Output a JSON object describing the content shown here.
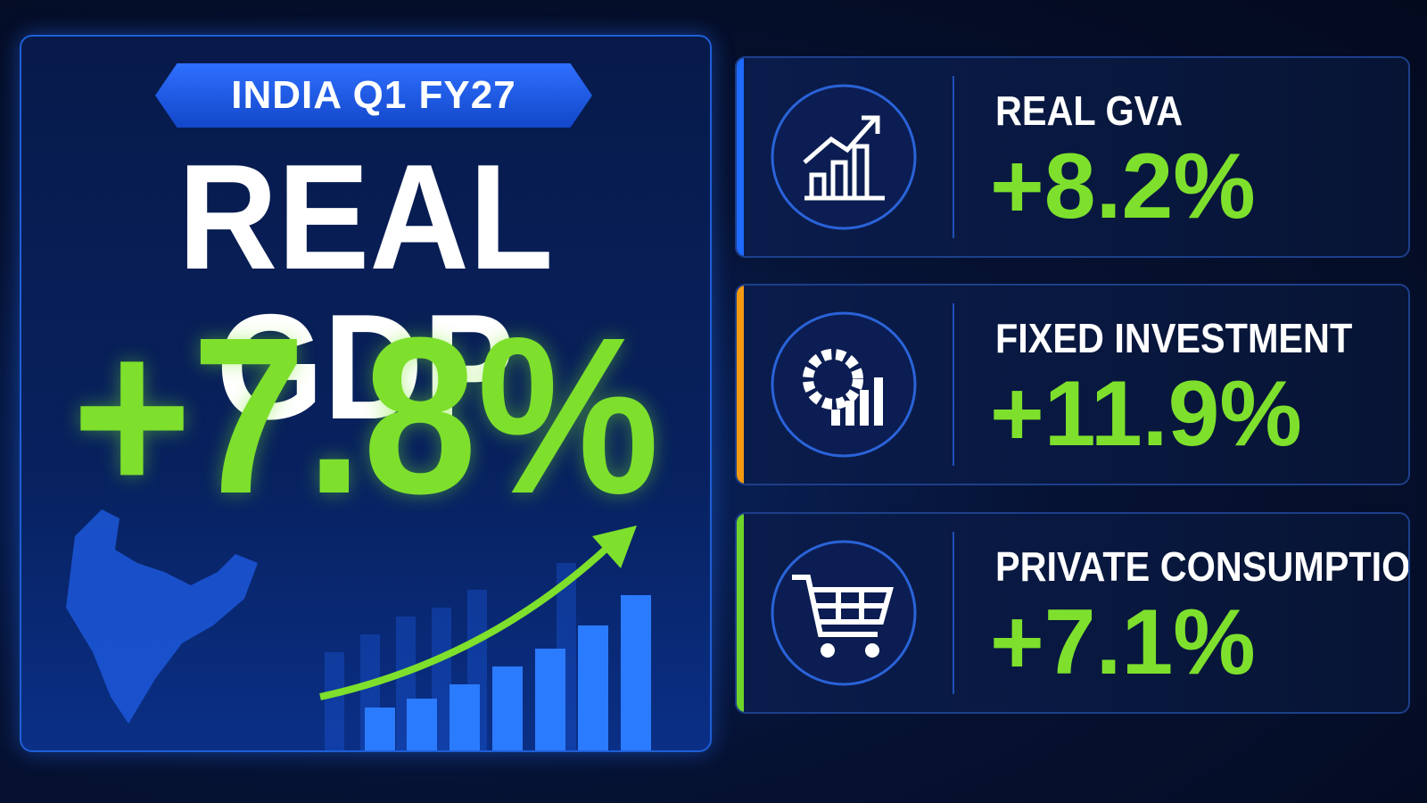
{
  "badge": "INDIA Q1 FY27",
  "hero": {
    "title": "REAL GDP",
    "value": "+7.8%"
  },
  "cards": [
    {
      "label": "REAL GVA",
      "value": "+8.2%"
    },
    {
      "label": "FIXED INVESTMENT",
      "value": "+11.9%"
    },
    {
      "label": "PRIVATE CONSUMPTION",
      "value": "+7.1%"
    }
  ]
}
